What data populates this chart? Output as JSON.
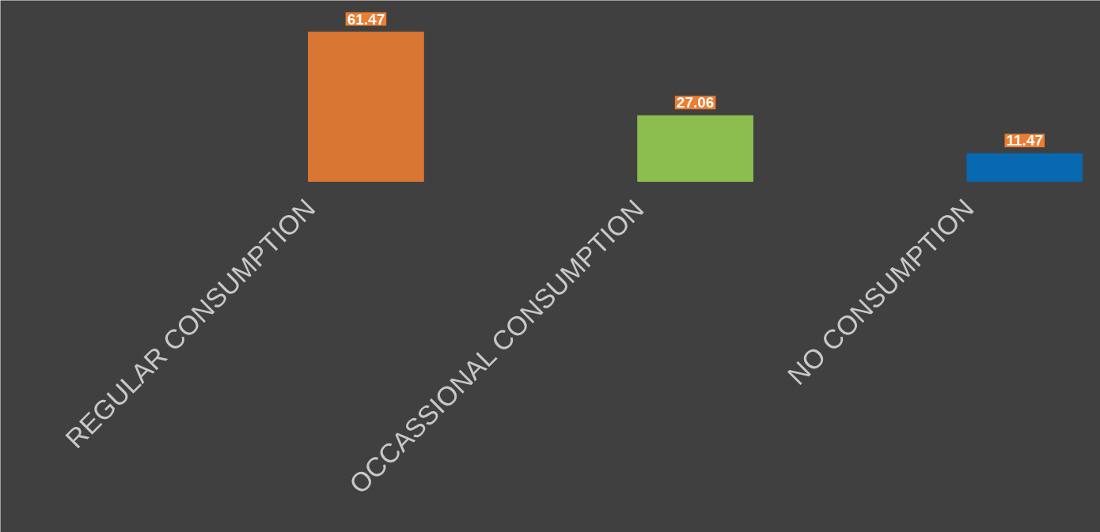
{
  "chart_data": {
    "type": "bar",
    "categories": [
      "REGULAR CONSUMPTION",
      "OCCASSIONAL CONSUMPTION",
      "NO CONSUMPTION"
    ],
    "values": [
      61.47,
      27.06,
      11.47
    ],
    "colors": [
      "#d97634",
      "#8bbd4f",
      "#0868b0"
    ],
    "data_labels": true
  }
}
